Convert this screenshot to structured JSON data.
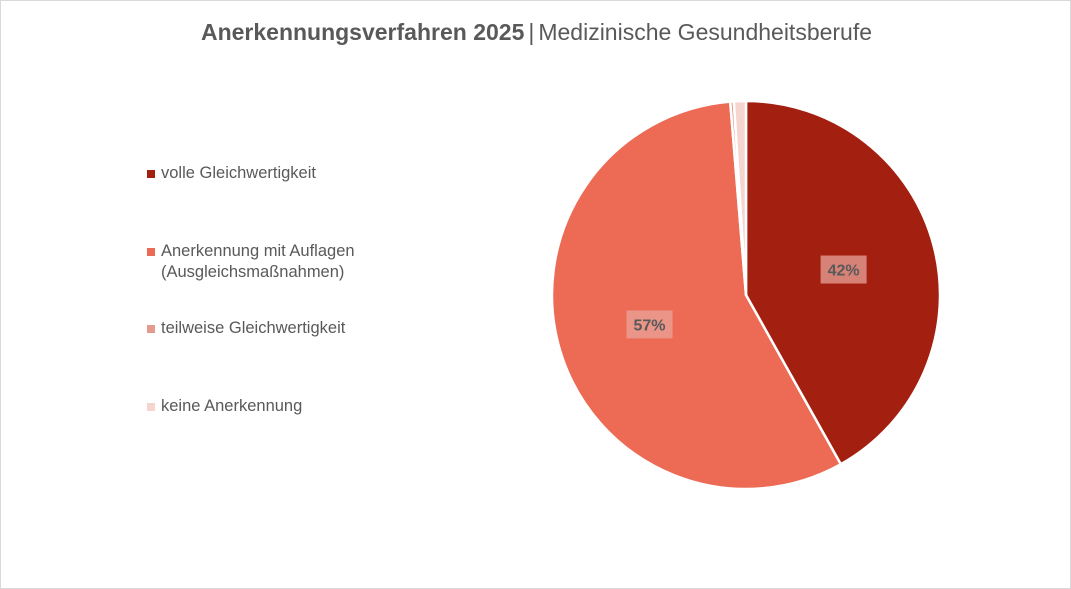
{
  "title": {
    "main": "Anerkennungsverfahren 2025",
    "separator": "|",
    "sub": "Medizinische Gesundheitsberufe"
  },
  "colors": {
    "volle": "#a31f10",
    "auflagen": "#ed6a55",
    "teilweise": "#e59a8e",
    "keine": "#f6d4cf",
    "text": "#595959"
  },
  "chart_data": {
    "type": "pie",
    "title": "Anerkennungsverfahren 2025 | Medizinische Gesundheitsberufe",
    "slices": [
      {
        "label": "volle Gleichwertigkeit",
        "value": 42,
        "color": "#a31f10",
        "data_label": "42%"
      },
      {
        "label": "Anerkennung mit Auflagen\n(Ausgleichsmaßnahmen)",
        "value": 57,
        "color": "#ed6a55",
        "data_label": "57%"
      },
      {
        "label": "teilweise Gleichwertigkeit",
        "value": 0.3,
        "color": "#e59a8e",
        "data_label": ""
      },
      {
        "label": "keine Anerkennung",
        "value": 1,
        "color": "#f6d4cf",
        "data_label": ""
      }
    ],
    "legend_position": "left",
    "start_angle_deg": 0,
    "direction": "clockwise"
  }
}
